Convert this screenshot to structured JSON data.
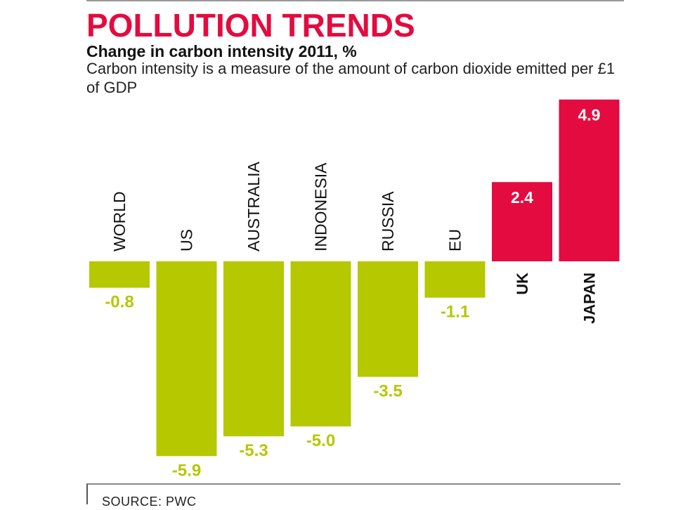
{
  "header": {
    "title": "POLLUTION TRENDS",
    "subtitle": "Change in carbon intensity 2011, %",
    "description": "Carbon intensity is a measure of the amount of carbon dioxide emitted per £1 of GDP"
  },
  "footer": {
    "source": "SOURCE: PWC"
  },
  "colors": {
    "negative": "#b5c800",
    "positive": "#e30b3f",
    "title": "#e30b3f"
  },
  "chart_data": {
    "type": "bar",
    "title": "POLLUTION TRENDS",
    "subtitle": "Change in carbon intensity 2011, %",
    "categories": [
      "WORLD",
      "US",
      "AUSTRALIA",
      "INDONESIA",
      "RUSSIA",
      "EU",
      "UK",
      "JAPAN"
    ],
    "values": [
      -0.8,
      -5.9,
      -5.3,
      -5.0,
      -3.5,
      -1.1,
      2.4,
      4.9
    ],
    "value_labels": [
      "-0.8",
      "-5.9",
      "-5.3",
      "-5.0",
      "-3.5",
      "-1.1",
      "2.4",
      "4.9"
    ],
    "xlabel": "",
    "ylabel": "",
    "grid": false,
    "legend": "none"
  }
}
